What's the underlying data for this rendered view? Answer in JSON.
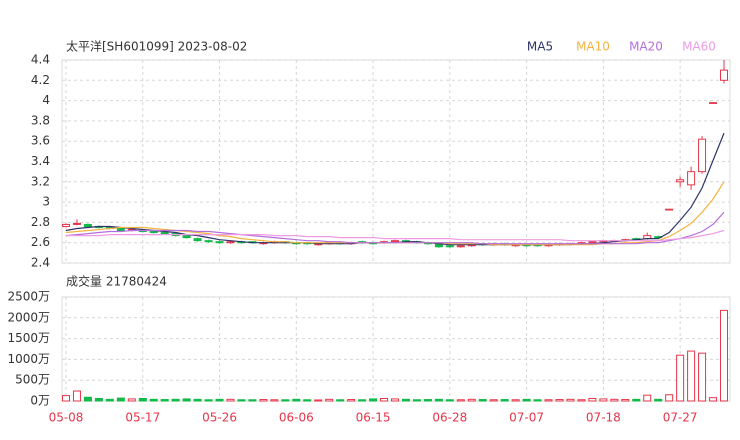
{
  "chart_data": {
    "type": "candlestick",
    "title": "太平洋[SH601099] 2023-08-02",
    "volume_title": "成交量 21780424",
    "categories": [
      "05-08",
      null,
      null,
      null,
      null,
      null,
      null,
      "05-17",
      null,
      null,
      null,
      null,
      null,
      null,
      "05-26",
      null,
      null,
      null,
      null,
      null,
      null,
      "06-06",
      null,
      null,
      null,
      null,
      null,
      null,
      "06-15",
      null,
      null,
      null,
      null,
      null,
      null,
      "06-28",
      null,
      null,
      null,
      null,
      null,
      null,
      "07-07",
      null,
      null,
      null,
      null,
      null,
      null,
      "07-18",
      null,
      null,
      null,
      null,
      null,
      null,
      "07-27",
      null,
      null,
      null,
      null
    ],
    "open": [
      2.76,
      2.78,
      2.78,
      2.76,
      2.75,
      2.74,
      2.72,
      2.72,
      2.71,
      2.7,
      2.69,
      2.67,
      2.64,
      2.62,
      2.61,
      2.6,
      2.61,
      2.61,
      2.59,
      2.6,
      2.61,
      2.6,
      2.6,
      2.58,
      2.59,
      2.6,
      2.59,
      2.61,
      2.6,
      2.6,
      2.61,
      2.62,
      2.61,
      2.6,
      2.59,
      2.57,
      2.56,
      2.57,
      2.59,
      2.58,
      2.59,
      2.57,
      2.58,
      2.58,
      2.57,
      2.58,
      2.59,
      2.59,
      2.6,
      2.61,
      2.62,
      2.62,
      2.64,
      2.64,
      2.66,
      2.93,
      3.2,
      3.17,
      3.3,
      3.98,
      4.2
    ],
    "high": [
      2.79,
      2.83,
      2.79,
      2.77,
      2.76,
      2.75,
      2.74,
      2.73,
      2.72,
      2.71,
      2.7,
      2.68,
      2.65,
      2.63,
      2.62,
      2.62,
      2.62,
      2.61,
      2.61,
      2.62,
      2.61,
      2.61,
      2.6,
      2.6,
      2.61,
      2.61,
      2.61,
      2.62,
      2.61,
      2.62,
      2.63,
      2.63,
      2.62,
      2.61,
      2.6,
      2.58,
      2.58,
      2.59,
      2.6,
      2.6,
      2.6,
      2.59,
      2.59,
      2.59,
      2.59,
      2.6,
      2.6,
      2.61,
      2.62,
      2.63,
      2.63,
      2.64,
      2.65,
      2.7,
      2.67,
      2.93,
      3.25,
      3.35,
      3.65,
      3.98,
      4.4
    ],
    "low": [
      2.75,
      2.77,
      2.75,
      2.74,
      2.73,
      2.71,
      2.71,
      2.7,
      2.69,
      2.68,
      2.66,
      2.64,
      2.61,
      2.6,
      2.59,
      2.59,
      2.59,
      2.59,
      2.58,
      2.59,
      2.59,
      2.58,
      2.58,
      2.57,
      2.58,
      2.58,
      2.58,
      2.59,
      2.58,
      2.59,
      2.6,
      2.6,
      2.59,
      2.58,
      2.55,
      2.55,
      2.55,
      2.56,
      2.57,
      2.57,
      2.57,
      2.56,
      2.56,
      2.56,
      2.56,
      2.57,
      2.58,
      2.58,
      2.59,
      2.6,
      2.61,
      2.61,
      2.62,
      2.63,
      2.64,
      2.93,
      3.15,
      3.12,
      3.28,
      3.98,
      4.17
    ],
    "close": [
      2.78,
      2.79,
      2.76,
      2.75,
      2.74,
      2.72,
      2.73,
      2.71,
      2.7,
      2.69,
      2.67,
      2.65,
      2.62,
      2.61,
      2.6,
      2.61,
      2.6,
      2.6,
      2.6,
      2.61,
      2.6,
      2.59,
      2.59,
      2.59,
      2.6,
      2.59,
      2.6,
      2.6,
      2.59,
      2.61,
      2.62,
      2.61,
      2.6,
      2.59,
      2.56,
      2.56,
      2.57,
      2.58,
      2.58,
      2.59,
      2.58,
      2.58,
      2.57,
      2.57,
      2.58,
      2.59,
      2.59,
      2.6,
      2.61,
      2.62,
      2.62,
      2.63,
      2.63,
      2.67,
      2.65,
      2.93,
      3.22,
      3.3,
      3.62,
      3.98,
      4.3
    ],
    "volume": [
      130,
      240,
      90,
      60,
      40,
      70,
      50,
      60,
      40,
      35,
      40,
      50,
      40,
      30,
      40,
      40,
      30,
      30,
      35,
      30,
      30,
      40,
      30,
      25,
      40,
      30,
      35,
      30,
      50,
      60,
      50,
      40,
      30,
      35,
      40,
      30,
      30,
      40,
      35,
      30,
      35,
      30,
      40,
      30,
      30,
      35,
      40,
      30,
      60,
      50,
      40,
      35,
      40,
      140,
      40,
      150,
      1100,
      1200,
      1150,
      80,
      2178
    ],
    "up_color": "#e5364a",
    "down_color": "#10b948",
    "series": [
      {
        "name": "MA5",
        "color": "#2e3468",
        "values": [
          2.72,
          2.74,
          2.75,
          2.76,
          2.76,
          2.75,
          2.74,
          2.73,
          2.72,
          2.71,
          2.7,
          2.68,
          2.67,
          2.65,
          2.63,
          2.62,
          2.61,
          2.6,
          2.6,
          2.6,
          2.6,
          2.6,
          2.6,
          2.59,
          2.59,
          2.59,
          2.59,
          2.6,
          2.6,
          2.6,
          2.6,
          2.61,
          2.61,
          2.6,
          2.59,
          2.58,
          2.58,
          2.58,
          2.58,
          2.58,
          2.58,
          2.58,
          2.58,
          2.58,
          2.58,
          2.58,
          2.58,
          2.59,
          2.59,
          2.6,
          2.61,
          2.62,
          2.63,
          2.64,
          2.64,
          2.7,
          2.82,
          2.95,
          3.14,
          3.41,
          3.68
        ]
      },
      {
        "name": "MA10",
        "color": "#f5b342",
        "values": [
          2.7,
          2.71,
          2.72,
          2.73,
          2.74,
          2.75,
          2.75,
          2.75,
          2.74,
          2.73,
          2.72,
          2.71,
          2.7,
          2.69,
          2.67,
          2.66,
          2.64,
          2.63,
          2.62,
          2.61,
          2.61,
          2.6,
          2.6,
          2.6,
          2.6,
          2.6,
          2.6,
          2.6,
          2.6,
          2.6,
          2.6,
          2.6,
          2.6,
          2.6,
          2.6,
          2.59,
          2.59,
          2.59,
          2.59,
          2.58,
          2.58,
          2.58,
          2.58,
          2.58,
          2.58,
          2.58,
          2.58,
          2.58,
          2.58,
          2.59,
          2.59,
          2.6,
          2.6,
          2.61,
          2.62,
          2.66,
          2.72,
          2.79,
          2.9,
          3.03,
          3.2
        ]
      },
      {
        "name": "MA20",
        "color": "#b56fdc",
        "values": [
          2.67,
          2.68,
          2.69,
          2.7,
          2.71,
          2.71,
          2.72,
          2.72,
          2.72,
          2.72,
          2.72,
          2.72,
          2.71,
          2.71,
          2.7,
          2.69,
          2.68,
          2.67,
          2.66,
          2.65,
          2.64,
          2.63,
          2.62,
          2.62,
          2.61,
          2.61,
          2.6,
          2.6,
          2.6,
          2.6,
          2.6,
          2.6,
          2.6,
          2.6,
          2.6,
          2.6,
          2.6,
          2.6,
          2.59,
          2.59,
          2.59,
          2.59,
          2.59,
          2.59,
          2.59,
          2.59,
          2.59,
          2.59,
          2.59,
          2.59,
          2.59,
          2.59,
          2.59,
          2.6,
          2.6,
          2.62,
          2.64,
          2.67,
          2.71,
          2.78,
          2.9
        ]
      },
      {
        "name": "MA60",
        "color": "#ee9be3",
        "values": [
          2.67,
          2.67,
          2.67,
          2.67,
          2.68,
          2.68,
          2.68,
          2.68,
          2.68,
          2.68,
          2.68,
          2.68,
          2.68,
          2.68,
          2.68,
          2.68,
          2.68,
          2.68,
          2.68,
          2.67,
          2.67,
          2.67,
          2.66,
          2.66,
          2.66,
          2.65,
          2.65,
          2.65,
          2.65,
          2.64,
          2.64,
          2.64,
          2.64,
          2.64,
          2.64,
          2.64,
          2.63,
          2.63,
          2.63,
          2.63,
          2.63,
          2.63,
          2.63,
          2.63,
          2.63,
          2.63,
          2.62,
          2.62,
          2.62,
          2.62,
          2.62,
          2.62,
          2.62,
          2.62,
          2.62,
          2.63,
          2.64,
          2.65,
          2.67,
          2.69,
          2.72
        ]
      }
    ],
    "ylim": [
      2.4,
      4.4
    ],
    "yticks": [
      {
        "value": 2.4,
        "label": "2.4"
      },
      {
        "value": 2.6,
        "label": "2.6"
      },
      {
        "value": 2.8,
        "label": "2.8"
      },
      3,
      {
        "value": 3.2,
        "label": "3.2"
      },
      {
        "value": 3.4,
        "label": "3.4"
      },
      {
        "value": 3.6,
        "label": "3.6"
      },
      {
        "value": 3.8,
        "label": "3.8"
      },
      4,
      {
        "value": 4.2,
        "label": "4.2"
      },
      {
        "value": 4.4,
        "label": "4.4"
      }
    ],
    "y2lim": [
      0,
      2500
    ],
    "y2ticks": [
      {
        "value": 0,
        "label": "0万"
      },
      {
        "value": 500,
        "label": "500万"
      },
      {
        "value": 1000,
        "label": "1000万"
      },
      {
        "value": 1500,
        "label": "1500万"
      },
      {
        "value": 2000,
        "label": "2000万"
      },
      {
        "value": 2500,
        "label": "2500万"
      }
    ],
    "grid": true
  }
}
